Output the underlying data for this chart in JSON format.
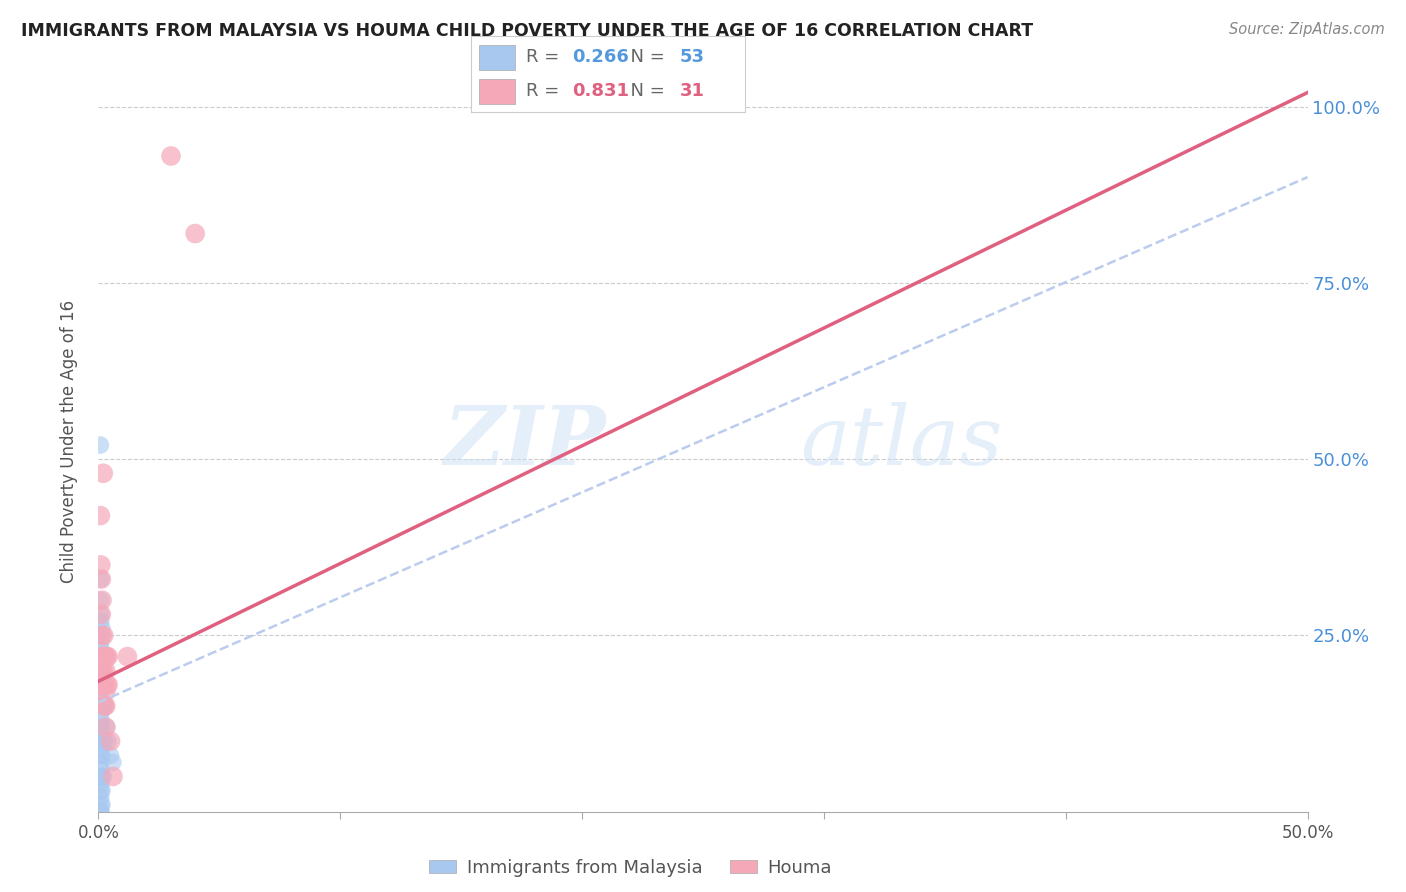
{
  "title": "IMMIGRANTS FROM MALAYSIA VS HOUMA CHILD POVERTY UNDER THE AGE OF 16 CORRELATION CHART",
  "source": "Source: ZipAtlas.com",
  "ylabel": "Child Poverty Under the Age of 16",
  "x_min": 0.0,
  "x_max": 0.5,
  "y_min": 0.0,
  "y_max": 1.05,
  "watermark_zip": "ZIP",
  "watermark_atlas": "atlas",
  "legend_r_blue": "0.266",
  "legend_n_blue": "53",
  "legend_r_pink": "0.831",
  "legend_n_pink": "31",
  "blue_color": "#a8c8f0",
  "pink_color": "#f5a8b8",
  "blue_line_color": "#5599dd",
  "pink_line_color": "#e06080",
  "blue_dashed_line_color": "#bbccee",
  "blue_scatter": [
    [
      0.0008,
      0.52
    ],
    [
      0.001,
      0.33
    ],
    [
      0.001,
      0.3
    ],
    [
      0.001,
      0.28
    ],
    [
      0.001,
      0.27
    ],
    [
      0.001,
      0.25
    ],
    [
      0.001,
      0.24
    ],
    [
      0.001,
      0.23
    ],
    [
      0.001,
      0.22
    ],
    [
      0.001,
      0.21
    ],
    [
      0.001,
      0.2
    ],
    [
      0.001,
      0.19
    ],
    [
      0.001,
      0.18
    ],
    [
      0.001,
      0.17
    ],
    [
      0.001,
      0.16
    ],
    [
      0.001,
      0.15
    ],
    [
      0.001,
      0.14
    ],
    [
      0.001,
      0.13
    ],
    [
      0.001,
      0.12
    ],
    [
      0.001,
      0.11
    ],
    [
      0.001,
      0.1
    ],
    [
      0.001,
      0.09
    ],
    [
      0.001,
      0.08
    ],
    [
      0.001,
      0.07
    ],
    [
      0.001,
      0.06
    ],
    [
      0.001,
      0.05
    ],
    [
      0.001,
      0.04
    ],
    [
      0.001,
      0.03
    ],
    [
      0.001,
      0.02
    ],
    [
      0.001,
      0.01
    ],
    [
      0.001,
      0.0
    ],
    [
      0.001,
      0.0
    ],
    [
      0.0015,
      0.26
    ],
    [
      0.0015,
      0.22
    ],
    [
      0.0015,
      0.18
    ],
    [
      0.0015,
      0.15
    ],
    [
      0.0015,
      0.12
    ],
    [
      0.0015,
      0.1
    ],
    [
      0.0015,
      0.08
    ],
    [
      0.0015,
      0.05
    ],
    [
      0.0015,
      0.03
    ],
    [
      0.0015,
      0.01
    ],
    [
      0.002,
      0.2
    ],
    [
      0.002,
      0.15
    ],
    [
      0.002,
      0.1
    ],
    [
      0.002,
      0.05
    ],
    [
      0.0025,
      0.15
    ],
    [
      0.0025,
      0.1
    ],
    [
      0.003,
      0.15
    ],
    [
      0.0035,
      0.12
    ],
    [
      0.004,
      0.1
    ],
    [
      0.005,
      0.08
    ],
    [
      0.006,
      0.07
    ]
  ],
  "pink_scatter": [
    [
      0.0008,
      0.42
    ],
    [
      0.001,
      0.35
    ],
    [
      0.0012,
      0.33
    ],
    [
      0.0012,
      0.28
    ],
    [
      0.0015,
      0.3
    ],
    [
      0.0015,
      0.25
    ],
    [
      0.0015,
      0.22
    ],
    [
      0.0018,
      0.2
    ],
    [
      0.0018,
      0.18
    ],
    [
      0.002,
      0.48
    ],
    [
      0.002,
      0.22
    ],
    [
      0.002,
      0.2
    ],
    [
      0.002,
      0.18
    ],
    [
      0.0022,
      0.25
    ],
    [
      0.0025,
      0.22
    ],
    [
      0.0025,
      0.18
    ],
    [
      0.0025,
      0.15
    ],
    [
      0.0028,
      0.22
    ],
    [
      0.003,
      0.2
    ],
    [
      0.003,
      0.17
    ],
    [
      0.003,
      0.15
    ],
    [
      0.003,
      0.12
    ],
    [
      0.0035,
      0.22
    ],
    [
      0.0035,
      0.18
    ],
    [
      0.004,
      0.22
    ],
    [
      0.004,
      0.18
    ],
    [
      0.005,
      0.1
    ],
    [
      0.006,
      0.05
    ],
    [
      0.012,
      0.22
    ],
    [
      0.03,
      0.93
    ],
    [
      0.04,
      0.82
    ]
  ],
  "blue_trend_x": [
    0.0,
    0.5
  ],
  "blue_trend_y": [
    0.155,
    0.9
  ],
  "pink_trend_x": [
    0.0,
    0.5
  ],
  "pink_trend_y": [
    0.185,
    1.02
  ]
}
